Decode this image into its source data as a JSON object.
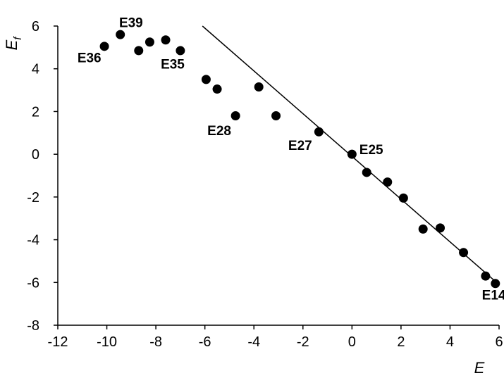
{
  "chart_data": {
    "type": "scatter",
    "title": "",
    "xlabel": "E",
    "ylabel": "E",
    "ylabel_subscript": "f",
    "xlim": [
      -12,
      6
    ],
    "ylim": [
      -8,
      6
    ],
    "xticks": [
      -12,
      -10,
      -8,
      -6,
      -4,
      -2,
      0,
      2,
      4,
      6
    ],
    "yticks": [
      -8,
      -6,
      -4,
      -2,
      0,
      2,
      4,
      6
    ],
    "grid": false,
    "legend": "none",
    "marker_color": "#000000",
    "points": [
      {
        "x": -10.1,
        "y": 5.05
      },
      {
        "x": -9.45,
        "y": 5.6
      },
      {
        "x": -8.7,
        "y": 4.85
      },
      {
        "x": -8.25,
        "y": 5.25
      },
      {
        "x": -7.6,
        "y": 5.35
      },
      {
        "x": -7.0,
        "y": 4.85
      },
      {
        "x": -5.95,
        "y": 3.5
      },
      {
        "x": -5.5,
        "y": 3.05
      },
      {
        "x": -3.8,
        "y": 3.15
      },
      {
        "x": -4.75,
        "y": 1.8
      },
      {
        "x": -3.1,
        "y": 1.8
      },
      {
        "x": -1.35,
        "y": 1.05
      },
      {
        "x": 0.0,
        "y": 0.0
      },
      {
        "x": 0.6,
        "y": -0.85
      },
      {
        "x": 1.45,
        "y": -1.3
      },
      {
        "x": 2.1,
        "y": -2.05
      },
      {
        "x": 2.9,
        "y": -3.5
      },
      {
        "x": 3.6,
        "y": -3.45
      },
      {
        "x": 4.55,
        "y": -4.6
      },
      {
        "x": 5.45,
        "y": -5.7
      },
      {
        "x": 5.85,
        "y": -6.05
      }
    ],
    "annotations": [
      {
        "text": "E39",
        "x": -9.5,
        "y": 5.95
      },
      {
        "text": "E36",
        "x": -11.2,
        "y": 4.3
      },
      {
        "text": "E35",
        "x": -7.8,
        "y": 4.0
      },
      {
        "text": "E28",
        "x": -5.9,
        "y": 0.9
      },
      {
        "text": "E27",
        "x": -2.6,
        "y": 0.2
      },
      {
        "text": "E25",
        "x": 0.3,
        "y": 0.0
      },
      {
        "text": "E14",
        "x": 5.3,
        "y": -6.8
      }
    ],
    "fit_line": {
      "x": [
        -6.1,
        5.9
      ],
      "y": [
        6.0,
        -6.0
      ]
    }
  }
}
